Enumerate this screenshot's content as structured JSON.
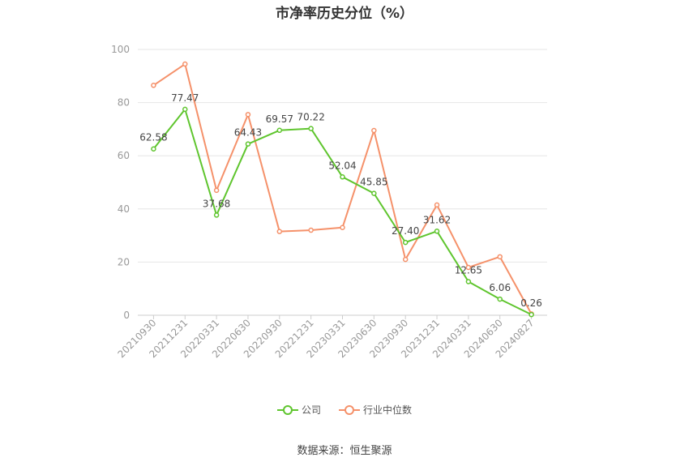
{
  "chart_data": {
    "type": "line",
    "title": "市净率历史分位（%）",
    "categories": [
      "20210930",
      "20211231",
      "20220331",
      "20220630",
      "20220930",
      "20221231",
      "20230331",
      "20230630",
      "20230930",
      "20231231",
      "20240331",
      "20240630",
      "20240827"
    ],
    "ylim": [
      0,
      100
    ],
    "yticks": [
      0,
      20,
      40,
      60,
      80,
      100
    ],
    "grid": true,
    "legend_position": "bottom",
    "series": [
      {
        "name": "公司",
        "color": "#5fc52e",
        "values": [
          62.58,
          77.47,
          37.68,
          64.43,
          69.57,
          70.22,
          52.04,
          45.85,
          27.4,
          31.62,
          12.65,
          6.06,
          0.26
        ],
        "labels": [
          "62.58",
          "77.47",
          "37.68",
          "64.43",
          "69.57",
          "70.22",
          "52.04",
          "45.85",
          "27.40",
          "31.62",
          "12.65",
          "6.06",
          "0.26"
        ]
      },
      {
        "name": "行业中位数",
        "color": "#f5916a",
        "values": [
          86.5,
          94.5,
          47.0,
          75.5,
          31.5,
          32.0,
          33.0,
          69.5,
          21.0,
          41.5,
          18.0,
          22.0,
          0.5
        ]
      }
    ]
  },
  "source": "数据来源：恒生聚源"
}
